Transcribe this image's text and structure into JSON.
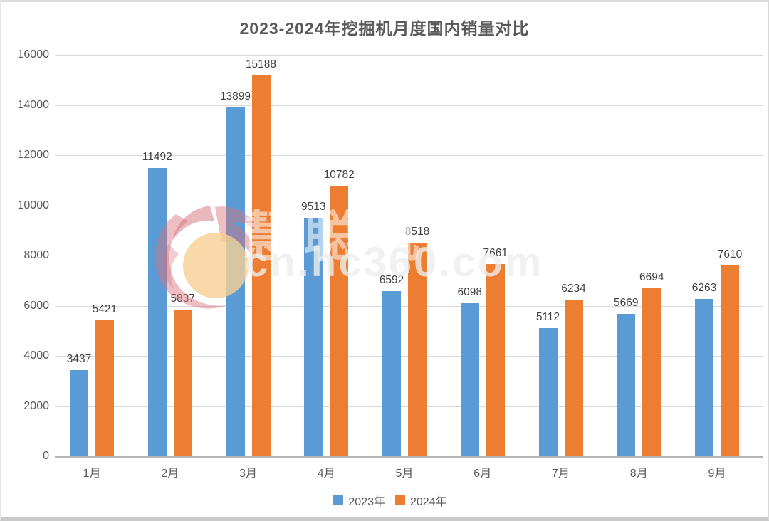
{
  "title": "2023-2024年挖掘机月度国内销量对比",
  "colors": {
    "series_2023": "#5B9BD5",
    "series_2024": "#ED7D31",
    "gridline": "#D9D9D9",
    "axis_line": "#B3B3B3",
    "axis_text": "#595959",
    "value_label_text": "#404040",
    "title_text": "#595959"
  },
  "watermark": {
    "logo": "flame-sun-logo",
    "text_line1": "慧聪机械",
    "text_line2": "cn.hc360.com"
  },
  "legend": {
    "items": [
      {
        "label": "2023年",
        "color": "#5B9BD5"
      },
      {
        "label": "2024年",
        "color": "#ED7D31"
      }
    ]
  },
  "chart_data": {
    "type": "bar",
    "title": "2023-2024年挖掘机月度国内销量对比",
    "categories": [
      "1月",
      "2月",
      "3月",
      "4月",
      "5月",
      "6月",
      "7月",
      "8月",
      "9月"
    ],
    "series": [
      {
        "name": "2023年",
        "color": "#5B9BD5",
        "values": [
          3437,
          11492,
          13899,
          9513,
          6592,
          6098,
          5112,
          5669,
          6263
        ]
      },
      {
        "name": "2024年",
        "color": "#ED7D31",
        "values": [
          5421,
          5837,
          15188,
          10782,
          8518,
          7661,
          6234,
          6694,
          7610
        ]
      }
    ],
    "xlabel": "",
    "ylabel": "",
    "ylim": [
      0,
      16000
    ],
    "ytick_interval": 2000,
    "yticks": [
      0,
      2000,
      4000,
      6000,
      8000,
      10000,
      12000,
      14000,
      16000
    ],
    "grid": true,
    "data_labels": true,
    "legend_position": "bottom"
  }
}
